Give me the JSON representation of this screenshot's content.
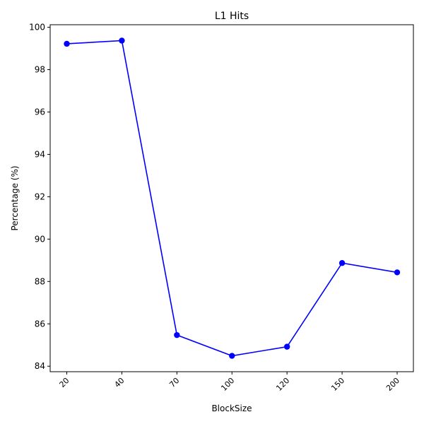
{
  "chart_data": {
    "type": "line",
    "title": "L1 Hits",
    "xlabel": "BlockSize",
    "ylabel": "Percentage (%)",
    "categories": [
      "20",
      "40",
      "70",
      "100",
      "120",
      "150",
      "200"
    ],
    "series": [
      {
        "values": [
          99.22,
          99.37,
          85.47,
          84.49,
          84.92,
          88.87,
          88.43
        ],
        "color": "#0000ff",
        "marker": "circle"
      }
    ],
    "yticks": [
      "84",
      "86",
      "88",
      "90",
      "92",
      "94",
      "96",
      "98",
      "100"
    ],
    "ylim": [
      83.74,
      100.12
    ],
    "grid": false,
    "legend": "none"
  }
}
